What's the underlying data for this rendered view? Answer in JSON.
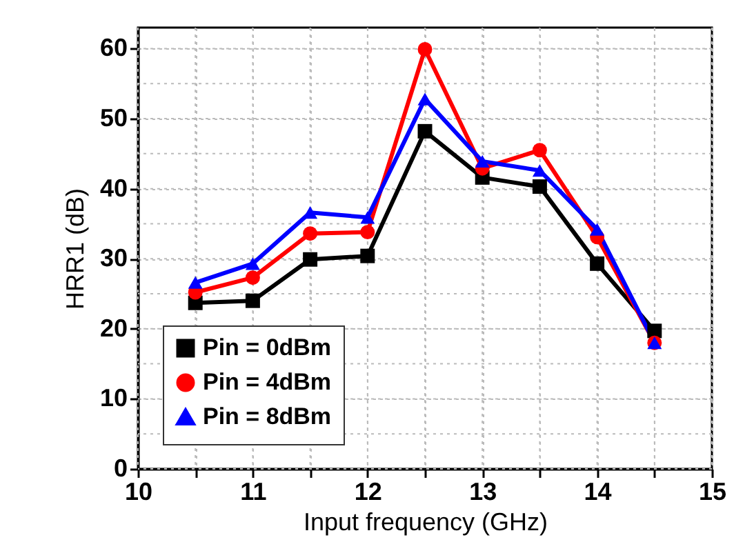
{
  "chart_data": {
    "type": "line",
    "xlabel": "Input frequency (GHz)",
    "ylabel": "HRR1 (dB)",
    "x": [
      10.5,
      11,
      11.5,
      12,
      12.5,
      13,
      13.5,
      14,
      14.5
    ],
    "series": [
      {
        "name": "Pin = 0dBm",
        "color": "#000000",
        "marker": "square",
        "values": [
          23.7,
          24.0,
          29.9,
          30.4,
          48.2,
          41.6,
          40.3,
          29.3,
          19.7
        ]
      },
      {
        "name": "Pin = 4dBm",
        "color": "#ff0000",
        "marker": "circle",
        "values": [
          25.2,
          27.3,
          33.6,
          33.8,
          59.9,
          42.9,
          45.5,
          33.1,
          18.0
        ]
      },
      {
        "name": "Pin = 8dBm",
        "color": "#0000ff",
        "marker": "triangle",
        "values": [
          26.6,
          29.3,
          36.6,
          35.9,
          52.8,
          43.9,
          42.6,
          34.2,
          18.0
        ]
      }
    ],
    "xlim": [
      10,
      15
    ],
    "xticks": [
      10,
      {
        "value": 10.5,
        "label": null
      },
      11,
      {
        "value": 11.5,
        "label": null
      },
      12,
      {
        "value": 12.5,
        "label": null
      },
      13,
      {
        "value": 13.5,
        "label": null
      },
      14,
      {
        "value": 14.5,
        "label": null
      },
      15
    ],
    "ylim": [
      0,
      63
    ],
    "yticks": [
      0,
      {
        "value": 5,
        "label": null
      },
      10,
      {
        "value": 15,
        "label": null
      },
      20,
      {
        "value": 25,
        "label": null
      },
      30,
      {
        "value": 35,
        "label": null
      },
      40,
      {
        "value": 45,
        "label": null
      },
      50,
      {
        "value": 55,
        "label": null
      },
      60
    ],
    "grid": true,
    "legend": "bottom left",
    "line_style": "solid"
  }
}
